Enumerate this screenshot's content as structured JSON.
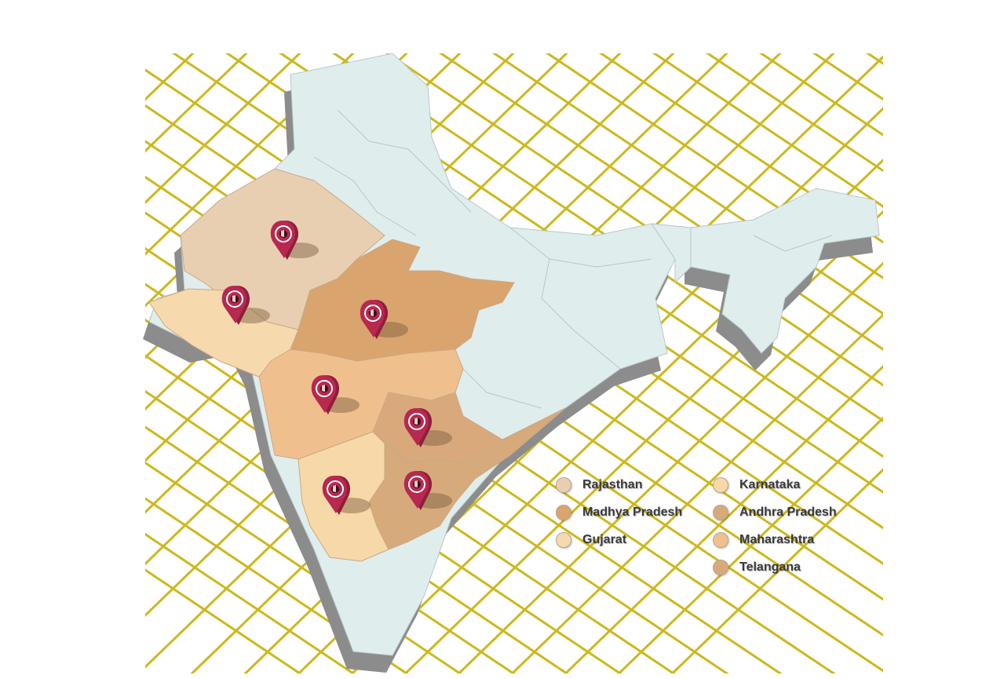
{
  "map": {
    "colors": {
      "background": "#ffffff",
      "grid": "#cdb81c",
      "land": "#e0eded",
      "land_border": "#b7c7c9",
      "extrusion": "#8c8c8c",
      "pin_body": "#8c1f3c",
      "pin_face": "#b8284f",
      "pin_ring": "#ffffff"
    },
    "states": [
      {
        "id": "rajasthan",
        "name": "Rajasthan",
        "color": "#e9cfb2"
      },
      {
        "id": "madhya-pradesh",
        "name": "Madhya Pradesh",
        "color": "#d9a46e"
      },
      {
        "id": "gujarat",
        "name": "Gujarat",
        "color": "#f7d9ae"
      },
      {
        "id": "karnataka",
        "name": "Karnataka",
        "color": "#f7d8a8"
      },
      {
        "id": "andhra-pradesh",
        "name": "Andhra Pradesh",
        "color": "#d6aa7b"
      },
      {
        "id": "maharashtra",
        "name": "Maharashtra",
        "color": "#efc08e"
      },
      {
        "id": "telangana",
        "name": "Telangana",
        "color": "#d9a97c"
      }
    ],
    "markers": [
      {
        "state": "rajasthan"
      },
      {
        "state": "gujarat"
      },
      {
        "state": "madhya-pradesh"
      },
      {
        "state": "maharashtra"
      },
      {
        "state": "telangana"
      },
      {
        "state": "karnataka"
      },
      {
        "state": "andhra-pradesh"
      }
    ]
  },
  "legend": {
    "left": [
      {
        "label": "Rajasthan",
        "color": "#e9cfb2"
      },
      {
        "label": "Madhya Pradesh",
        "color": "#d9a46e"
      },
      {
        "label": "Gujarat",
        "color": "#f7d9ae"
      }
    ],
    "right": [
      {
        "label": "Karnataka",
        "color": "#f7d8a8"
      },
      {
        "label": "Andhra Pradesh",
        "color": "#d6aa7b"
      },
      {
        "label": "Maharashtra",
        "color": "#efc08e"
      },
      {
        "label": "Telangana",
        "color": "#d9a97c"
      }
    ]
  }
}
